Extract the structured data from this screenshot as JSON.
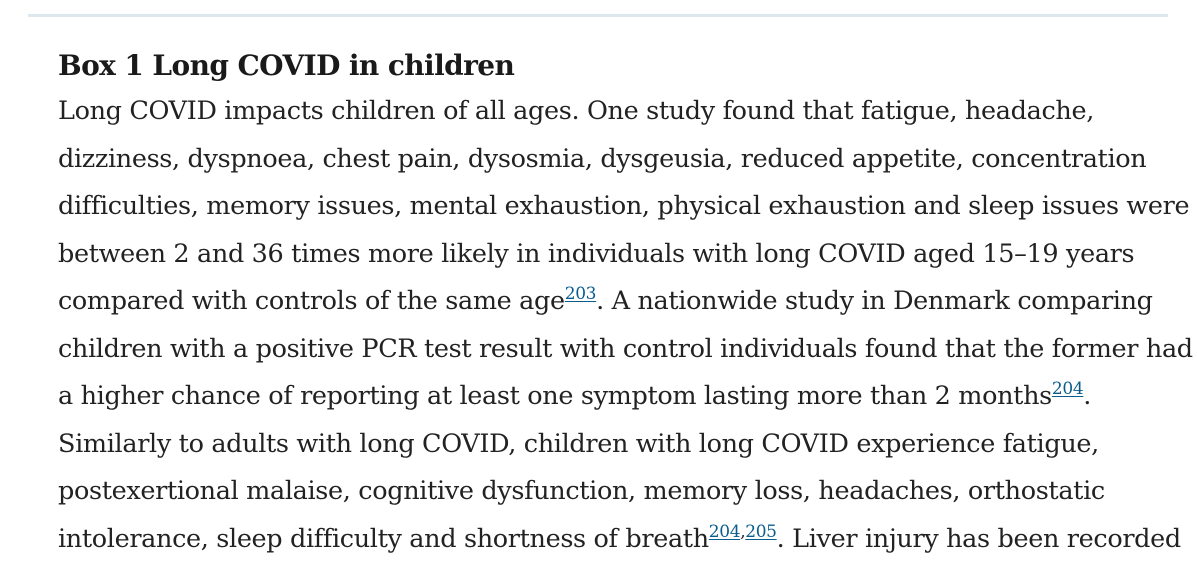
{
  "box": {
    "title": "Box 1 Long COVID in children",
    "lines": [
      {
        "text": "Long COVID impacts children of all ages. One study found that fatigue, headache,"
      },
      {
        "text": "dizziness, dyspnoea, chest pain, dysosmia, dysgeusia, reduced appetite, concentration"
      },
      {
        "text": "difficulties, memory issues, mental exhaustion, physical exhaustion and sleep issues were"
      },
      {
        "text": "between 2 and 36 times more likely in individuals with long COVID aged 15–19 years"
      },
      {
        "text": "compared with controls of the same age",
        "ref": "203",
        "after": ". A nationwide study in Denmark comparing"
      },
      {
        "text": "children with a positive PCR test result with control individuals found that the former had"
      },
      {
        "text": "a higher chance of reporting at least one symptom lasting more than 2 months",
        "ref": "204",
        "after": "."
      },
      {
        "text": "Similarly to adults with long COVID, children with long COVID experience fatigue,"
      },
      {
        "text": "postexertional malaise, cognitive dysfunction, memory loss, headaches, orthostatic"
      },
      {
        "text": "intolerance, sleep difficulty and shortness of breath",
        "ref": "204",
        "sep": ",",
        "ref2": "205",
        "after": ". Liver injury has been recorded"
      }
    ]
  },
  "colors": {
    "link": "#0a5d8f",
    "rule": "#dde7ee",
    "text": "#222222"
  }
}
